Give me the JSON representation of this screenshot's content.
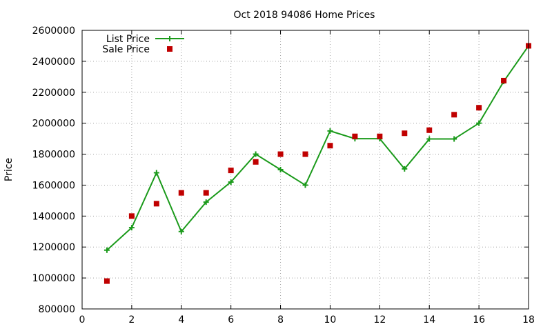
{
  "chart_data": {
    "type": "line",
    "title": "Oct 2018 94086 Home Prices",
    "xlabel": "",
    "ylabel": "Price",
    "xlim": [
      0,
      18
    ],
    "ylim": [
      800000,
      2600000
    ],
    "x_ticks": [
      0,
      2,
      4,
      6,
      8,
      10,
      12,
      14,
      16,
      18
    ],
    "y_ticks": [
      800000,
      1000000,
      1200000,
      1400000,
      1600000,
      1800000,
      2000000,
      2200000,
      2400000,
      2600000
    ],
    "grid": true,
    "legend_position": "top-left",
    "series": [
      {
        "name": "List Price",
        "style": "line-with-plus-markers",
        "color": "#1a9a1a",
        "x": [
          1,
          2,
          3,
          4,
          5,
          6,
          7,
          8,
          9,
          10,
          11,
          12,
          13,
          14,
          15,
          16,
          17,
          18
        ],
        "y": [
          1180000,
          1325000,
          1680000,
          1300000,
          1490000,
          1620000,
          1800000,
          1700000,
          1600000,
          1950000,
          1900000,
          1900000,
          1705000,
          1898000,
          1898000,
          2000000,
          2270000,
          2500000
        ]
      },
      {
        "name": "Sale Price",
        "style": "square-points",
        "color": "#c00000",
        "x": [
          1,
          2,
          3,
          4,
          5,
          6,
          7,
          8,
          9,
          10,
          11,
          12,
          13,
          14,
          15,
          16,
          17,
          18
        ],
        "y": [
          980000,
          1400000,
          1480000,
          1550000,
          1550000,
          1695000,
          1750000,
          1800000,
          1800000,
          1855000,
          1915000,
          1915000,
          1935000,
          1955000,
          2055000,
          2100000,
          2275000,
          2500000
        ]
      }
    ]
  }
}
